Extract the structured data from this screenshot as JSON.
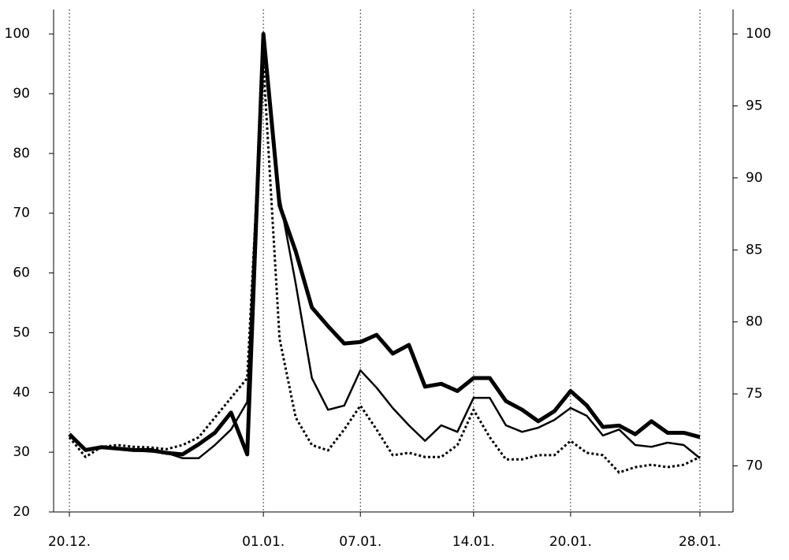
{
  "chart_data": {
    "type": "line",
    "categories": [
      "20.12.",
      null,
      null,
      null,
      null,
      null,
      null,
      null,
      null,
      null,
      null,
      null,
      "01.01.",
      null,
      null,
      null,
      null,
      null,
      "07.01.",
      null,
      null,
      null,
      null,
      null,
      null,
      "14.01.",
      null,
      null,
      null,
      null,
      null,
      "20.01.",
      null,
      null,
      null,
      null,
      null,
      null,
      null,
      "28.01."
    ],
    "ylim": [
      20,
      104.1
    ],
    "yticks": [
      20,
      30,
      40,
      50,
      60,
      70,
      80,
      90,
      100
    ],
    "y2lim": [
      66.8,
      101.7
    ],
    "y2ticks": [
      70,
      75,
      80,
      85,
      90,
      95,
      100
    ],
    "grid": "x",
    "color": "#000000",
    "series": [
      {
        "axis": "y2",
        "color": "#000000",
        "line_width": 5,
        "dashed": false,
        "values": [
          72.2,
          71.1,
          71.3,
          71.2,
          71.1,
          71.1,
          70.9,
          70.8,
          71.5,
          72.3,
          73.7,
          70.8,
          100,
          88.1,
          84.9,
          81.0,
          79.7,
          78.5,
          78.6,
          79.1,
          77.8,
          78.4,
          75.5,
          75.7,
          75.2,
          76.1,
          76.1,
          74.5,
          73.9,
          73.1,
          73.8,
          75.2,
          74.2,
          72.7,
          72.8,
          72.2,
          73.1,
          72.3,
          72.3,
          72.0
        ]
      },
      {
        "color": "#000000",
        "line_width": 2.5,
        "dashed": false,
        "values": [
          32.9,
          30.3,
          30.8,
          30.5,
          30.3,
          30.1,
          29.9,
          29.0,
          29.0,
          31.2,
          33.8,
          38.4,
          100,
          72.7,
          58.2,
          42.4,
          37.1,
          37.8,
          43.7,
          40.8,
          37.4,
          34.5,
          31.9,
          34.5,
          33.4,
          39.1,
          39.1,
          34.5,
          33.4,
          34.1,
          35.4,
          37.4,
          36.1,
          32.8,
          33.8,
          31.2,
          30.9,
          31.6,
          31.2,
          29.0
        ]
      },
      {
        "color": "#000000",
        "line_width": 3,
        "dashed": true,
        "values": [
          32.5,
          29.2,
          30.9,
          31.2,
          30.9,
          30.8,
          30.5,
          31.2,
          32.5,
          35.8,
          39.1,
          42.4,
          95.1,
          49.0,
          35.8,
          31.2,
          30.3,
          33.8,
          37.8,
          33.8,
          29.5,
          29.9,
          29.2,
          29.2,
          31.2,
          37.1,
          32.5,
          28.8,
          28.8,
          29.5,
          29.5,
          31.9,
          29.9,
          29.5,
          26.6,
          27.5,
          27.9,
          27.5,
          27.9,
          29.2
        ]
      }
    ]
  }
}
